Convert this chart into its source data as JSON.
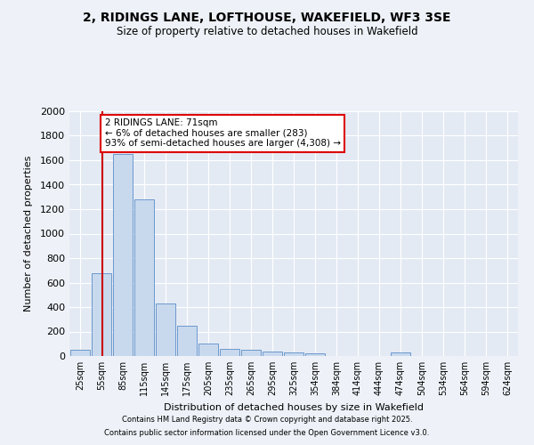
{
  "title_line1": "2, RIDINGS LANE, LOFTHOUSE, WAKEFIELD, WF3 3SE",
  "title_line2": "Size of property relative to detached houses in Wakefield",
  "xlabel": "Distribution of detached houses by size in Wakefield",
  "ylabel": "Number of detached properties",
  "categories": [
    "25sqm",
    "55sqm",
    "85sqm",
    "115sqm",
    "145sqm",
    "175sqm",
    "205sqm",
    "235sqm",
    "265sqm",
    "295sqm",
    "325sqm",
    "354sqm",
    "384sqm",
    "414sqm",
    "444sqm",
    "474sqm",
    "504sqm",
    "534sqm",
    "564sqm",
    "594sqm",
    "624sqm"
  ],
  "values": [
    50,
    680,
    1650,
    1280,
    430,
    245,
    100,
    60,
    50,
    40,
    30,
    20,
    0,
    0,
    0,
    30,
    0,
    0,
    0,
    0,
    0
  ],
  "bar_color": "#c8d9ee",
  "bar_edge_color": "#5b8dc8",
  "vline_color": "#cc0000",
  "ylim": [
    0,
    2000
  ],
  "yticks": [
    0,
    200,
    400,
    600,
    800,
    1000,
    1200,
    1400,
    1600,
    1800,
    2000
  ],
  "annotation_title": "2 RIDINGS LANE: 71sqm",
  "annotation_line2": "← 6% of detached houses are smaller (283)",
  "annotation_line3": "93% of semi-detached houses are larger (4,308) →",
  "annotation_box_color": "#dd0000",
  "footer_line1": "Contains HM Land Registry data © Crown copyright and database right 2025.",
  "footer_line2": "Contains public sector information licensed under the Open Government Licence v3.0.",
  "background_color": "#eef2f8",
  "plot_bg_color": "#e4eaf4"
}
